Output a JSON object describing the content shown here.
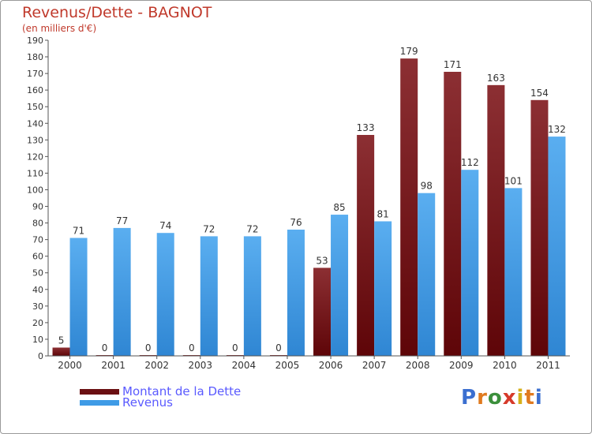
{
  "colors": {
    "dette": "#6b0f12",
    "revenus": "#3f9be6",
    "title": "#c0392b",
    "legend_text": "#5a5aff",
    "axis": "#555555"
  },
  "logo": {
    "text": "Proxiti",
    "letter_colors": [
      "#3b6fd0",
      "#e07a1f",
      "#3b8f3b",
      "#d63a2a",
      "#d6b01a",
      "#e07a1f",
      "#3b6fd0"
    ]
  },
  "chart_data": {
    "type": "bar",
    "title": "Revenus/Dette - BAGNOT",
    "subtitle": "(en milliers d'€)",
    "xlabel": "",
    "ylabel": "",
    "ylim": [
      0,
      190
    ],
    "y_ticks": [
      0,
      10,
      20,
      30,
      40,
      50,
      60,
      70,
      80,
      90,
      100,
      110,
      120,
      130,
      140,
      150,
      160,
      170,
      180,
      190
    ],
    "grid": false,
    "legend_position": "bottom-left",
    "categories": [
      "2000",
      "2001",
      "2002",
      "2003",
      "2004",
      "2005",
      "2006",
      "2007",
      "2008",
      "2009",
      "2010",
      "2011"
    ],
    "series": [
      {
        "name": "Montant de la Dette",
        "values": [
          5,
          0,
          0,
          0,
          0,
          0,
          53,
          133,
          179,
          171,
          163,
          154
        ]
      },
      {
        "name": "Revenus",
        "values": [
          71,
          77,
          74,
          72,
          72,
          76,
          85,
          81,
          98,
          112,
          101,
          132
        ]
      }
    ]
  }
}
